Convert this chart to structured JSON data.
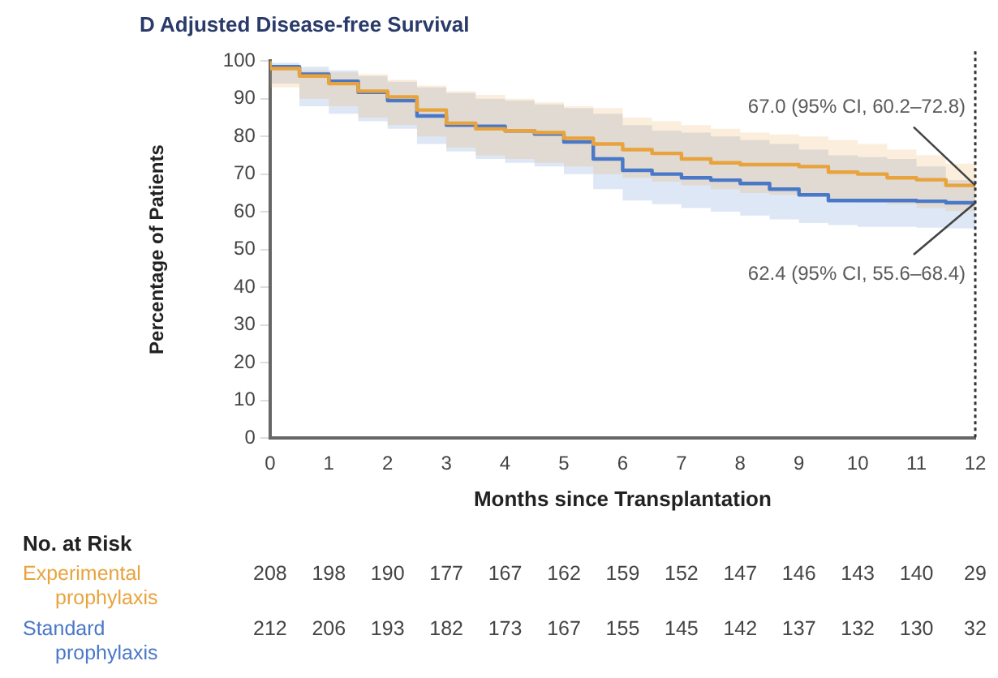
{
  "chart_data": {
    "type": "step",
    "title": "D Adjusted Disease-free Survival",
    "xlabel": "Months since Transplantation",
    "ylabel": "Percentage of Patients",
    "xlim": [
      0,
      12
    ],
    "xticks": [
      0,
      1,
      2,
      3,
      4,
      5,
      6,
      7,
      8,
      9,
      10,
      11,
      12
    ],
    "ylim": [
      0,
      100
    ],
    "yticks": [
      0,
      10,
      20,
      30,
      40,
      50,
      60,
      70,
      80,
      90,
      100
    ],
    "grid": false,
    "legend": false,
    "marker": "none",
    "line_style": "solid",
    "series": [
      {
        "name": "Experimental prophylaxis",
        "color": "#e8a33d",
        "x": [
          0,
          0.5,
          1,
          1.5,
          2,
          2.5,
          3,
          3.5,
          4,
          4.5,
          5,
          5.5,
          6,
          6.5,
          7,
          7.5,
          8,
          8.5,
          9,
          9.5,
          10,
          10.5,
          11,
          11.5,
          12
        ],
        "values": [
          100,
          98,
          96,
          94,
          92,
          90.5,
          87,
          83.5,
          82,
          81.5,
          81,
          79.5,
          78,
          76.5,
          75.5,
          74,
          73,
          72.5,
          72.5,
          72,
          70.5,
          70,
          69,
          68.5,
          67.0
        ],
        "upper": [
          100,
          98.5,
          97.5,
          97,
          96.5,
          95,
          93.5,
          92,
          91,
          90,
          89,
          88,
          87.5,
          85,
          84,
          83,
          82,
          81,
          80.5,
          80,
          79,
          78,
          76.5,
          75,
          72.8
        ],
        "lower": [
          100,
          93,
          90,
          88,
          85,
          83,
          80,
          77,
          75,
          74,
          73,
          72,
          70,
          69,
          68,
          67,
          66,
          65,
          64.5,
          64,
          63,
          62.5,
          62,
          61,
          60.2
        ]
      },
      {
        "name": "Standard prophylaxis",
        "color": "#4a78c8",
        "x": [
          0,
          0.5,
          1,
          1.5,
          2,
          2.5,
          3,
          3.5,
          4,
          4.5,
          5,
          5.5,
          6,
          6.5,
          7,
          7.5,
          8,
          8.5,
          9,
          9.5,
          10,
          10.5,
          11,
          11.5,
          12
        ],
        "values": [
          100,
          98.5,
          96.5,
          94.6,
          91.7,
          89.5,
          85.4,
          83,
          82.7,
          81.5,
          80.6,
          78.5,
          74,
          71,
          70,
          69,
          68.4,
          67.5,
          66,
          64.5,
          63,
          63,
          63,
          62.8,
          62.4
        ],
        "upper": [
          100,
          99.5,
          98.5,
          97.5,
          96,
          94.5,
          93,
          91.5,
          90,
          89.5,
          88.5,
          87.5,
          86,
          83,
          81.5,
          81,
          80,
          79,
          78,
          76.5,
          75,
          74.5,
          74,
          72,
          68.4
        ],
        "lower": [
          100,
          94,
          88,
          86,
          84,
          82,
          78,
          76,
          74,
          73,
          72,
          70,
          66,
          63,
          62,
          61,
          60,
          59,
          58,
          57,
          56.5,
          56,
          56,
          55.8,
          55.6
        ]
      }
    ],
    "ref_lines": [
      {
        "axis": "x",
        "value": 12,
        "color": "#333333",
        "line_style": "dotted"
      }
    ],
    "annotations": [
      {
        "text": "67.0 (95% CI, 60.2–72.8)",
        "x": 12,
        "y": 67.0
      },
      {
        "text": "62.4 (95% CI, 55.6–68.4)",
        "x": 12,
        "y": 62.4
      },
      "No. at Risk",
      "208 198 190 177 167 162 159 152 147 146 143 140 29",
      "212 206 193 182 173 167 155 145 142 137 132 130 32"
    ]
  }
}
